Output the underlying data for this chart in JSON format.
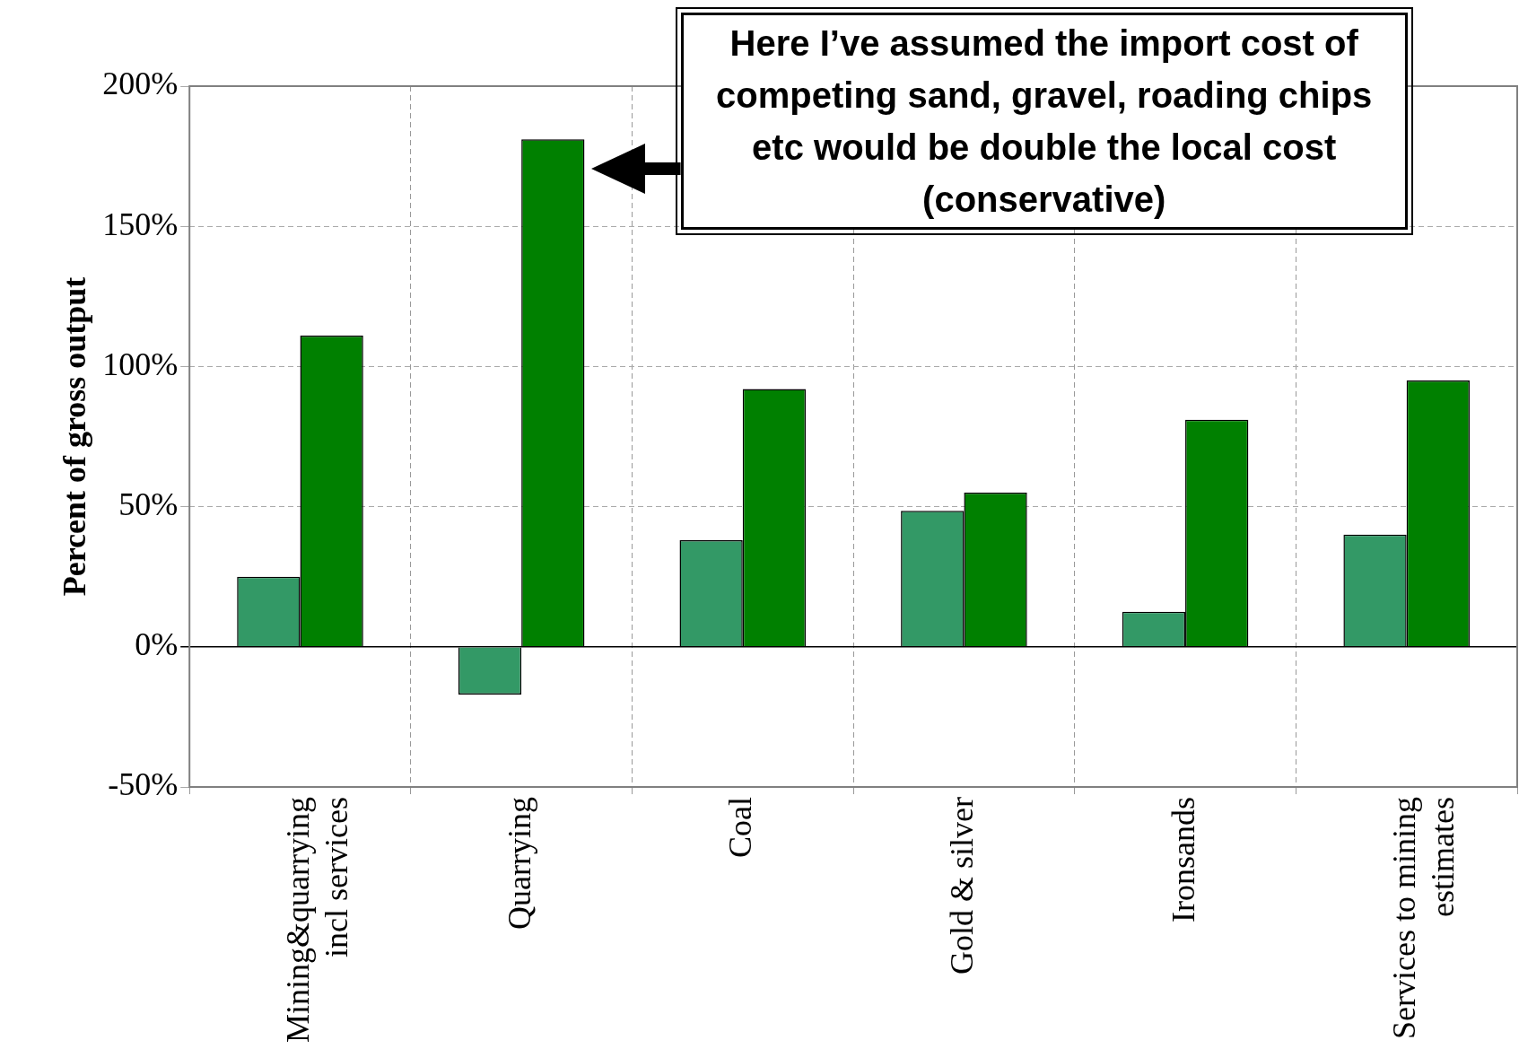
{
  "chart_data": {
    "type": "bar",
    "ylabel": "Percent of gross output",
    "categories": [
      "Mining&quarrying incl services",
      "Quarrying",
      "Coal",
      "Gold & silver",
      "Ironsands",
      "Services to mining estimates"
    ],
    "series": [
      {
        "color": "#339966",
        "values": [
          25,
          -17,
          38,
          48.5,
          12.5,
          40
        ]
      },
      {
        "color": "#008000",
        "values": [
          111,
          181,
          92,
          55,
          81,
          95
        ]
      }
    ],
    "ylim": [
      -50,
      200
    ],
    "yticks": [
      {
        "value": -50,
        "label": "-50%"
      },
      {
        "value": 0,
        "label": "0%"
      },
      {
        "value": 50,
        "label": "50%"
      },
      {
        "value": 100,
        "label": "100%"
      },
      {
        "value": 150,
        "label": "150%"
      },
      {
        "value": 200,
        "label": "200%"
      }
    ],
    "grid": true,
    "annotations": [
      "Here I’ve assumed the import cost of competing sand, gravel, roading chips etc would be double the local cost (conservative)"
    ]
  }
}
